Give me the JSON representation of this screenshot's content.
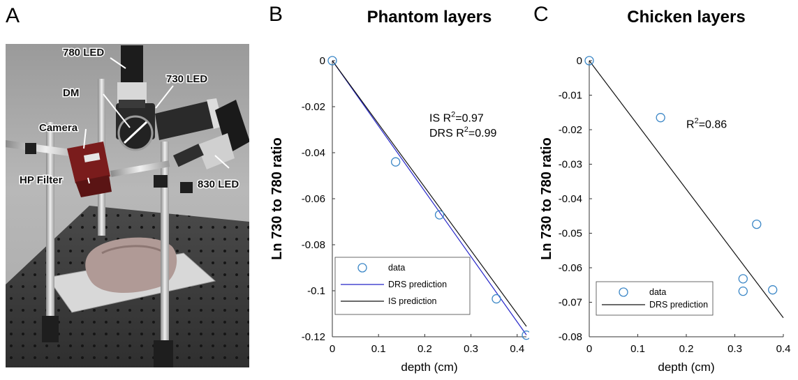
{
  "panels": {
    "a": "A",
    "b": "B",
    "c": "C"
  },
  "photo": {
    "labels": {
      "led780": "780 LED",
      "led730": "730 LED",
      "dm": "DM",
      "camera": "Camera",
      "hp_filter": "HP Filter",
      "led830": "830 LED"
    }
  },
  "chart_data": [
    {
      "type": "scatter",
      "title": "Phantom layers",
      "xlabel": "depth (cm)",
      "ylabel": "Ln 730 to 780 ratio",
      "xlim": [
        0,
        0.42
      ],
      "ylim": [
        -0.12,
        0
      ],
      "xticks": [
        "0",
        "0.1",
        "0.2",
        "0.3",
        "0.4"
      ],
      "xtick_values": [
        0,
        0.1,
        0.2,
        0.3,
        0.4
      ],
      "yticks": [
        "0",
        "-0.02",
        "-0.04",
        "-0.06",
        "-0.08",
        "-0.1",
        "-0.12"
      ],
      "ytick_values": [
        0,
        -0.02,
        -0.04,
        -0.06,
        -0.08,
        -0.1,
        -0.12
      ],
      "series": [
        {
          "name": "data",
          "kind": "markers",
          "color": "#3a86c6",
          "x": [
            0,
            0.137,
            0.232,
            0.355,
            0.42
          ],
          "y": [
            0,
            -0.044,
            -0.067,
            -0.1035,
            -0.1193
          ]
        },
        {
          "name": "DRS prediction",
          "kind": "line",
          "color": "#2424c8",
          "x": [
            0,
            0.42
          ],
          "y": [
            0,
            -0.1192
          ]
        },
        {
          "name": "IS prediction",
          "kind": "line",
          "color": "#111111",
          "x": [
            0,
            0.42
          ],
          "y": [
            0,
            -0.1155
          ]
        }
      ],
      "annotations": [
        {
          "prefix": "IS R",
          "sup": "2",
          "suffix": "=0.97",
          "x": 0.21,
          "y": -0.0265
        },
        {
          "prefix": "DRS R",
          "sup": "2",
          "suffix": "=0.99",
          "x": 0.21,
          "y": -0.033
        }
      ],
      "legend": "bottom-left",
      "grid": false
    },
    {
      "type": "scatter",
      "title": "Chicken layers",
      "xlabel": "depth (cm)",
      "ylabel": "Ln 730 to 780 ratio",
      "xlim": [
        0,
        0.4
      ],
      "ylim": [
        -0.08,
        0
      ],
      "xticks": [
        "0",
        "0.1",
        "0.2",
        "0.3",
        "0.4"
      ],
      "xtick_values": [
        0,
        0.1,
        0.2,
        0.3,
        0.4
      ],
      "yticks": [
        "0",
        "-0.01",
        "-0.02",
        "-0.03",
        "-0.04",
        "-0.05",
        "-0.06",
        "-0.07",
        "-0.08"
      ],
      "ytick_values": [
        0,
        -0.01,
        -0.02,
        -0.03,
        -0.04,
        -0.05,
        -0.06,
        -0.07,
        -0.08
      ],
      "series": [
        {
          "name": "data",
          "kind": "markers",
          "color": "#3a86c6",
          "x": [
            0,
            0.147,
            0.317,
            0.317,
            0.345,
            0.378
          ],
          "y": [
            0,
            -0.0165,
            -0.0632,
            -0.0668,
            -0.0474,
            -0.0664
          ]
        },
        {
          "name": "DRS prediction",
          "kind": "line",
          "color": "#111111",
          "x": [
            0,
            0.4
          ],
          "y": [
            0,
            -0.0745
          ]
        }
      ],
      "annotations": [
        {
          "prefix": "R",
          "sup": "2",
          "suffix": "=0.86",
          "x": 0.2,
          "y": -0.0195
        }
      ],
      "legend": "bottom-left",
      "grid": false
    }
  ]
}
